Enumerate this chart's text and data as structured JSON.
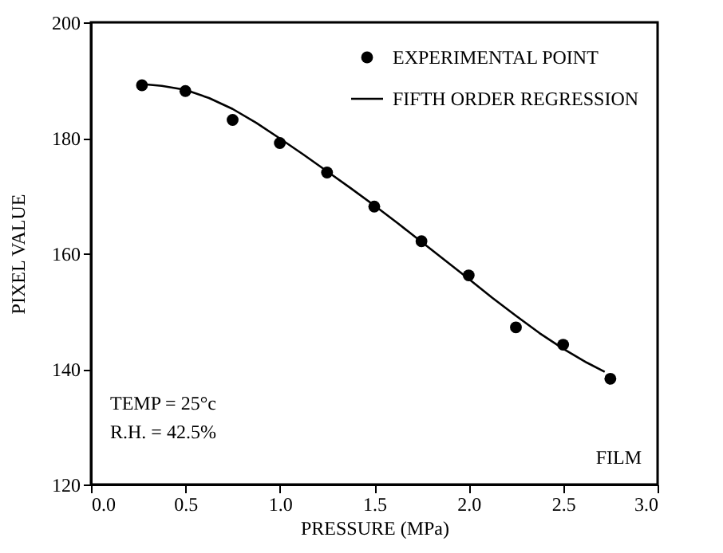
{
  "chart_data": {
    "type": "scatter",
    "xlabel": "PRESSURE (MPa)",
    "ylabel": "PIXEL VALUE",
    "xlim": [
      0,
      3
    ],
    "xticks": [
      {
        "value": 0,
        "label": "0.0"
      },
      {
        "value": 0.5,
        "label": "0.5"
      },
      {
        "value": 1,
        "label": "1.0"
      },
      {
        "value": 1.5,
        "label": "1.5"
      },
      {
        "value": 2,
        "label": "2.0"
      },
      {
        "value": 2.5,
        "label": "2.5"
      },
      {
        "value": 3,
        "label": "3.0"
      }
    ],
    "ylim": [
      120,
      200
    ],
    "yticks": [
      120,
      140,
      160,
      180,
      200
    ],
    "grid": false,
    "legend": "top right",
    "series": [
      {
        "name": "EXPERIMENTAL POINT",
        "marker": "circle",
        "color": "#000000",
        "x": [
          0.27,
          0.5,
          0.75,
          1.0,
          1.25,
          1.5,
          1.75,
          2.0,
          2.25,
          2.5,
          2.75
        ],
        "values": [
          189.1,
          188.1,
          183.1,
          179.1,
          174.0,
          168.1,
          162.1,
          156.2,
          147.2,
          144.2,
          138.3
        ]
      },
      {
        "name": "FIFTH ORDER REGRESSION",
        "type": "line",
        "marker": "none",
        "line_style": "solid",
        "color": "#000000",
        "x": [
          0.27,
          0.375,
          0.5,
          0.625,
          0.75,
          0.875,
          1.0,
          1.125,
          1.25,
          1.375,
          1.5,
          1.625,
          1.75,
          1.875,
          2.0,
          2.125,
          2.25,
          2.375,
          2.5,
          2.625,
          2.72
        ],
        "values": [
          189.3,
          189.0,
          188.3,
          186.9,
          185.0,
          182.6,
          179.9,
          177.1,
          174.2,
          171.3,
          168.3,
          165.2,
          162.0,
          158.8,
          155.6,
          152.3,
          149.2,
          146.2,
          143.5,
          141.1,
          139.5
        ]
      }
    ],
    "annotations": [
      "TEMP = 25°c",
      "R.H. = 42.5%",
      "FILM"
    ]
  }
}
